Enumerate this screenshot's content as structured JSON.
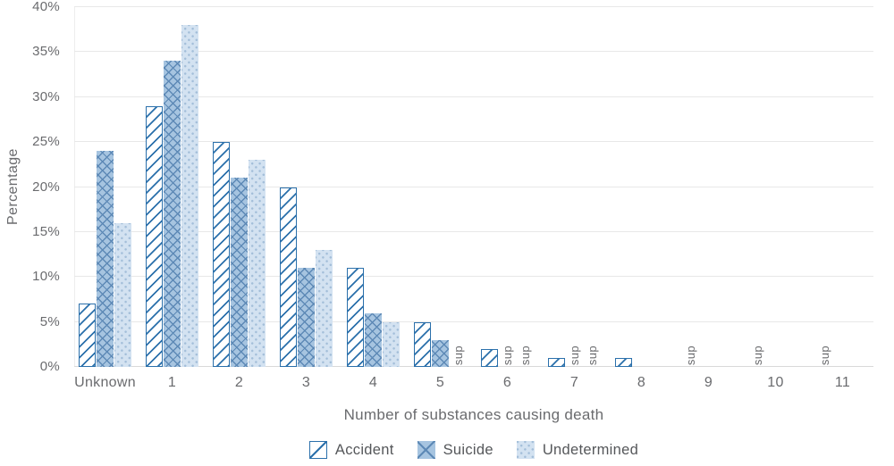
{
  "chart_data": {
    "type": "bar",
    "title": "",
    "xlabel": "Number of substances causing death",
    "ylabel": "Percentage",
    "ylim": [
      0,
      40
    ],
    "grid": "horizontal",
    "legend_position": "bottom",
    "suppressed_marker": "sup",
    "yticks": [
      {
        "value": 0,
        "label": "0%"
      },
      {
        "value": 5,
        "label": "5%"
      },
      {
        "value": 10,
        "label": "10%"
      },
      {
        "value": 15,
        "label": "15%"
      },
      {
        "value": 20,
        "label": "20%"
      },
      {
        "value": 25,
        "label": "25%"
      },
      {
        "value": 30,
        "label": "30%"
      },
      {
        "value": 35,
        "label": "35%"
      },
      {
        "value": 40,
        "label": "40%"
      }
    ],
    "categories": [
      "Unknown",
      "1",
      "2",
      "3",
      "4",
      "5",
      "6",
      "7",
      "8",
      "9",
      "10",
      "11"
    ],
    "series": [
      {
        "name": "Accident",
        "pattern": "diagonal-hatch",
        "values": [
          7,
          29,
          25,
          20,
          11,
          5,
          2,
          1,
          1,
          "sup",
          "sup",
          "sup"
        ]
      },
      {
        "name": "Suicide",
        "pattern": "crosshatch",
        "values": [
          24,
          34,
          21,
          11,
          6,
          3,
          "sup",
          "sup",
          null,
          null,
          null,
          null
        ]
      },
      {
        "name": "Undetermined",
        "pattern": "dotted",
        "values": [
          16,
          38,
          23,
          13,
          5,
          "sup",
          "sup",
          "sup",
          null,
          null,
          null,
          null
        ]
      }
    ],
    "colors": {
      "accident_line": "#2b70ab",
      "suicide_fill": "#a6c4e0",
      "suicide_line": "#5d89b6",
      "undetermined_fill": "#d3e2f1",
      "undetermined_dot": "#a3bed9",
      "gridline": "#e8e8e8",
      "axis_line": "#d9d9d9",
      "text": "#6a6b6e"
    }
  }
}
